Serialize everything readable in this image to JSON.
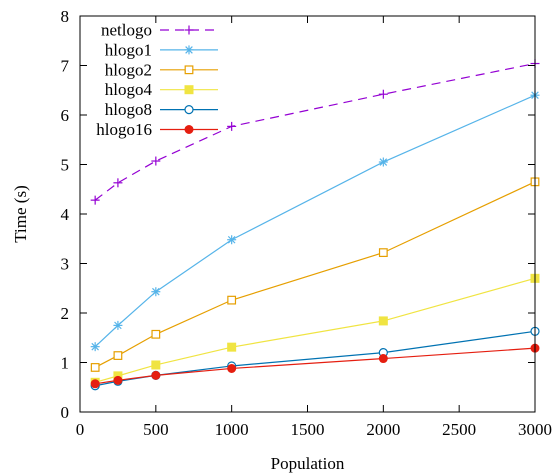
{
  "chart_data": {
    "type": "line",
    "title": "",
    "xlabel": "Population",
    "ylabel": "Time (s)",
    "xlim": [
      0,
      3000
    ],
    "ylim": [
      0,
      8
    ],
    "xticks": [
      0,
      500,
      1000,
      1500,
      2000,
      2500,
      3000
    ],
    "yticks": [
      0,
      1,
      2,
      3,
      4,
      5,
      6,
      7,
      8
    ],
    "grid": false,
    "legend": "top-left",
    "x": [
      100,
      250,
      500,
      1000,
      2000,
      3000
    ],
    "series": [
      {
        "name": "netlogo",
        "color": "#9400d3",
        "marker": "plus",
        "dashed": true,
        "values": [
          4.28,
          4.63,
          5.07,
          5.77,
          6.42,
          7.04
        ]
      },
      {
        "name": "hlogo1",
        "color": "#56b4e9",
        "marker": "star",
        "dashed": false,
        "values": [
          1.32,
          1.75,
          2.43,
          3.48,
          5.05,
          6.4
        ]
      },
      {
        "name": "hlogo2",
        "color": "#e69f00",
        "marker": "square-open",
        "dashed": false,
        "values": [
          0.9,
          1.14,
          1.57,
          2.26,
          3.22,
          4.65
        ]
      },
      {
        "name": "hlogo4",
        "color": "#f0e442",
        "marker": "square-filled",
        "dashed": false,
        "values": [
          0.6,
          0.73,
          0.95,
          1.31,
          1.84,
          2.7
        ]
      },
      {
        "name": "hlogo8",
        "color": "#0072b2",
        "marker": "circle-open",
        "dashed": false,
        "values": [
          0.53,
          0.62,
          0.74,
          0.93,
          1.2,
          1.63
        ]
      },
      {
        "name": "hlogo16",
        "color": "#e51e10",
        "marker": "circle-filled",
        "dashed": false,
        "values": [
          0.57,
          0.64,
          0.74,
          0.88,
          1.08,
          1.29
        ]
      }
    ]
  }
}
